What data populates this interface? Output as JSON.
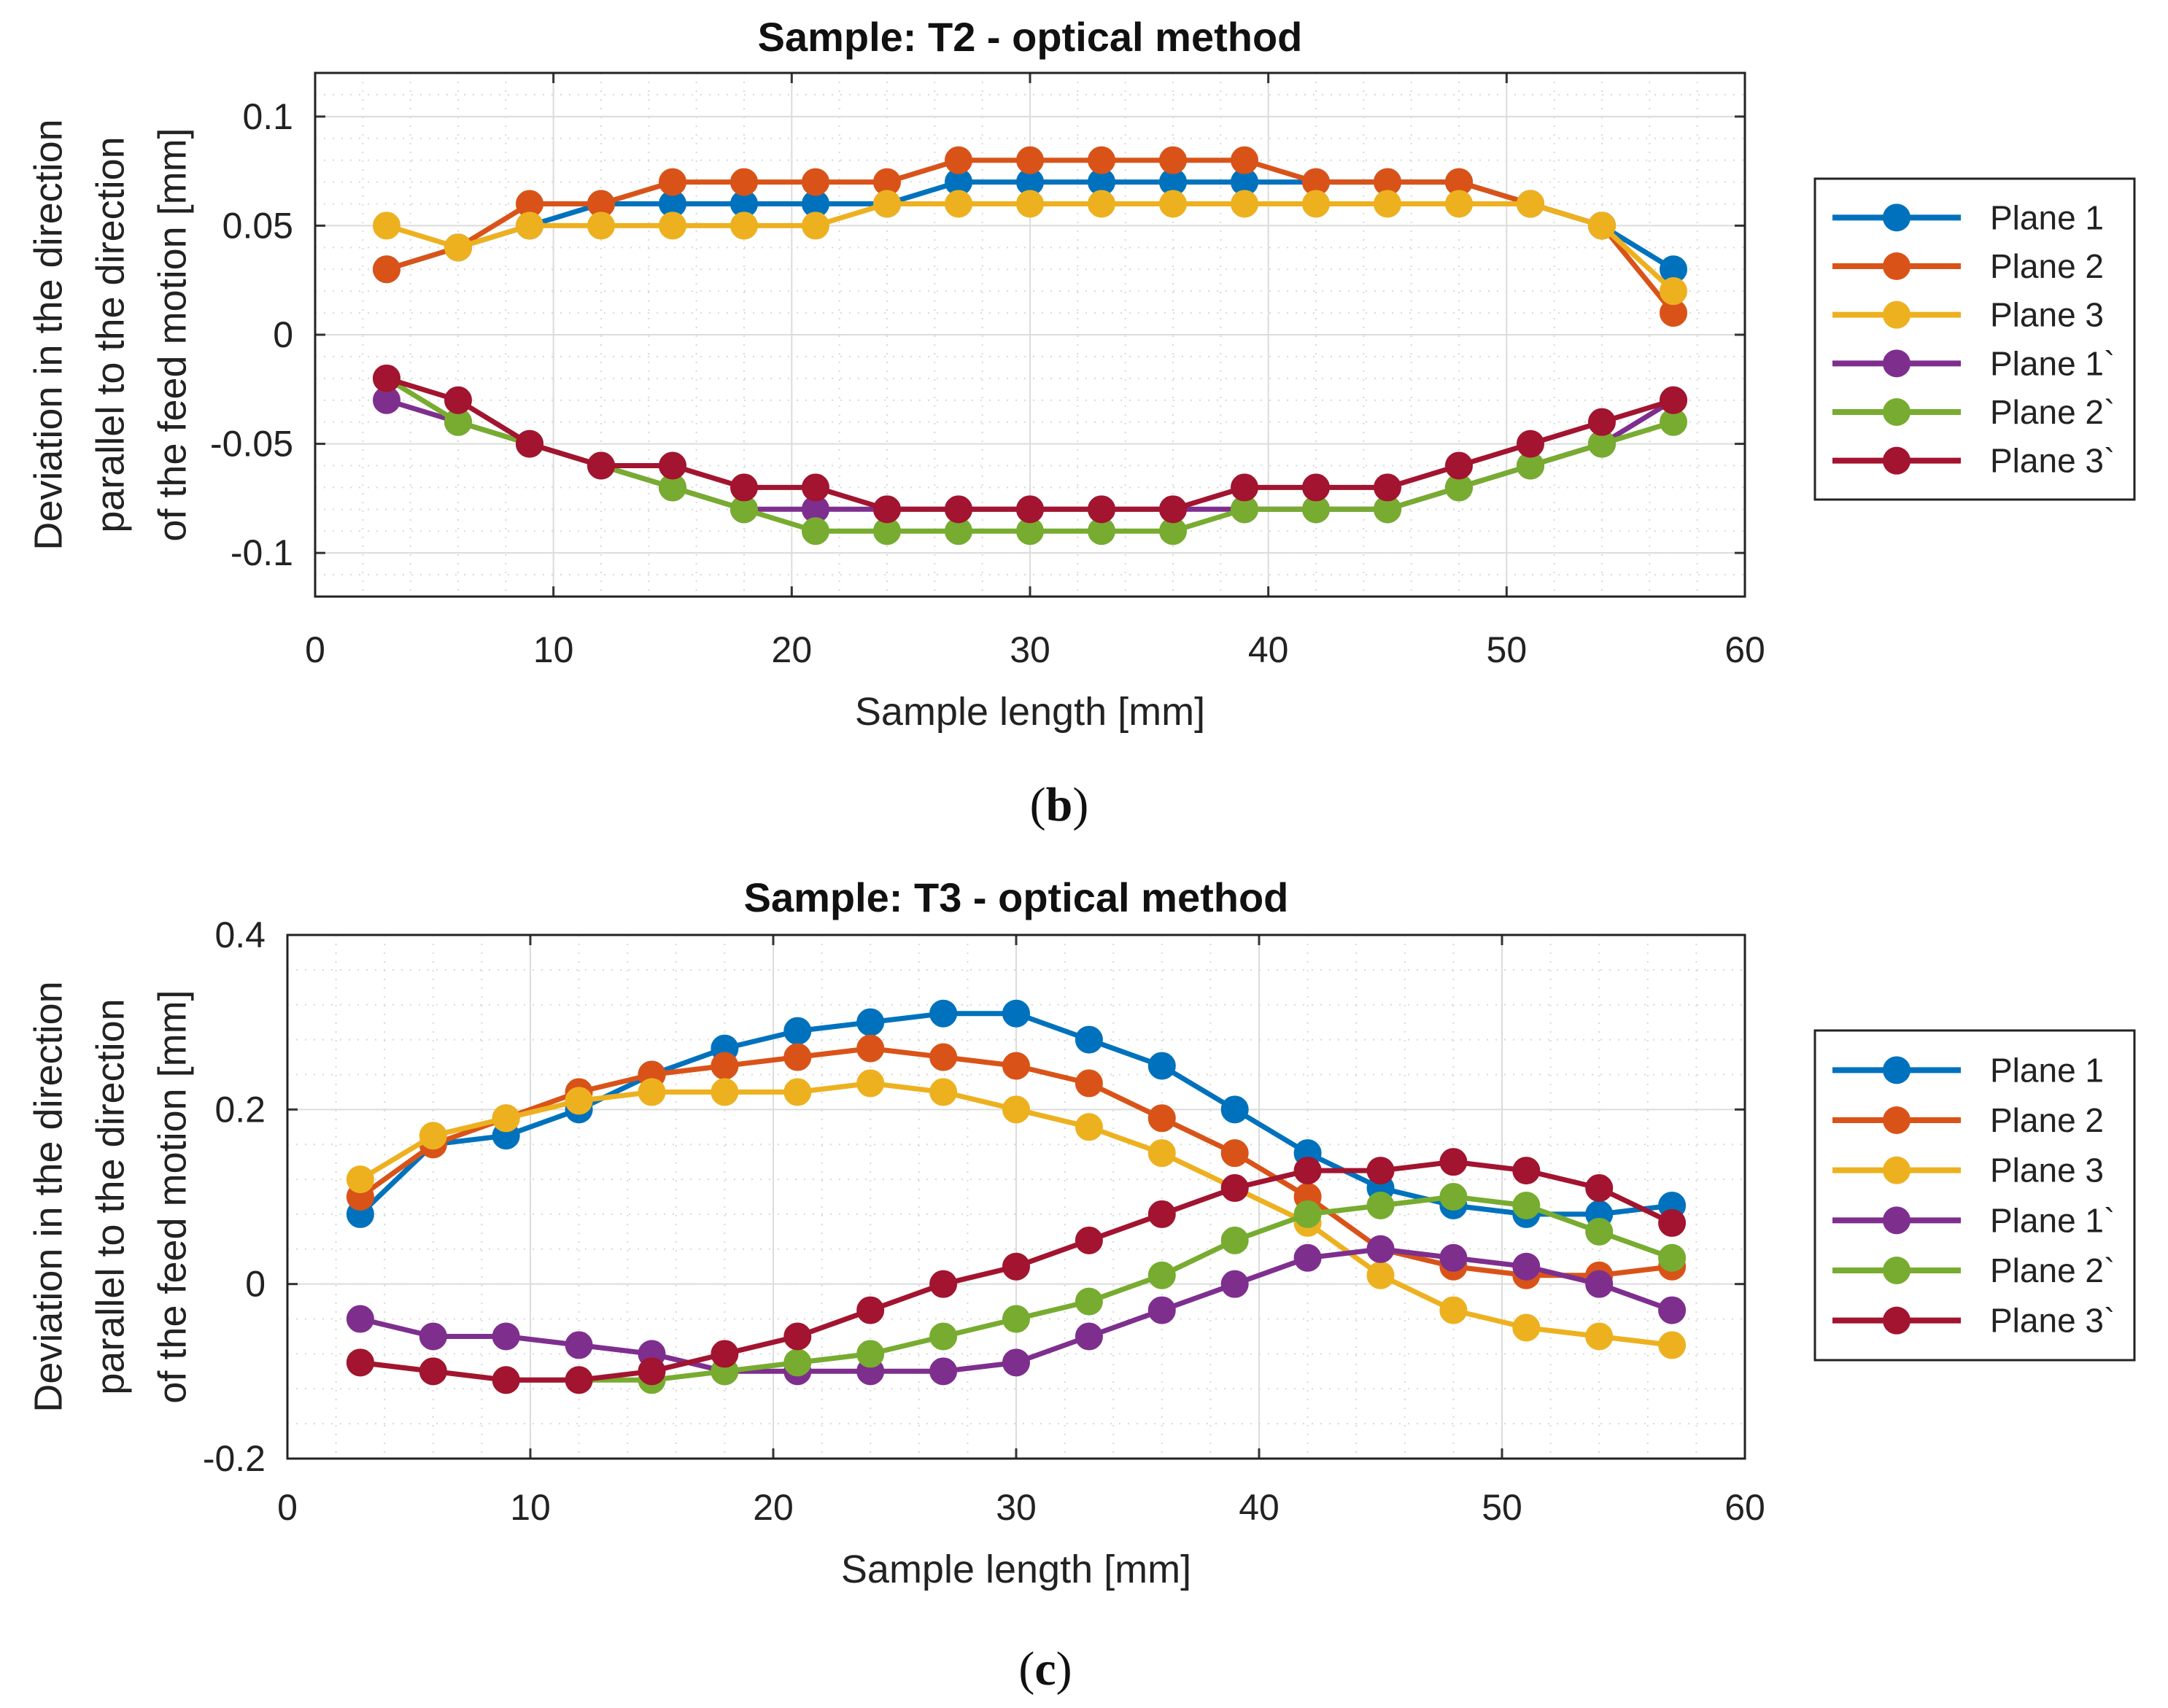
{
  "colors": {
    "plane1": "#0072BD",
    "plane2": "#D95319",
    "plane3": "#EDB120",
    "plane1p": "#7E2F8E",
    "plane2p": "#77AC30",
    "plane3p": "#A2142F"
  },
  "chart_data": [
    {
      "type": "line",
      "title": "Sample: T2 - optical method",
      "xlabel": "Sample length [mm]",
      "ylabel": [
        "Deviation in the direction",
        "parallel to the direction",
        "of the feed motion [mm]"
      ],
      "xlim": [
        0,
        60
      ],
      "ylim": [
        -0.12,
        0.12
      ],
      "xticks": [
        0,
        10,
        20,
        30,
        40,
        50,
        60
      ],
      "yticks": [
        -0.1,
        -0.05,
        0,
        0.05,
        0.1
      ],
      "ytick_labels": [
        "-0.1",
        "-0.05",
        "0",
        "0.05",
        "0.1"
      ],
      "grid": true,
      "minor_grid": true,
      "legend_position": "right",
      "caption": "b",
      "x": [
        3,
        6,
        9,
        12,
        15,
        18,
        21,
        24,
        27,
        30,
        33,
        36,
        39,
        42,
        45,
        48,
        51,
        54,
        57
      ],
      "series": [
        {
          "name": "Plane 1",
          "color_key": "plane1",
          "values": [
            0.03,
            0.04,
            0.05,
            0.06,
            0.06,
            0.06,
            0.06,
            0.06,
            0.07,
            0.07,
            0.07,
            0.07,
            0.07,
            0.07,
            0.07,
            0.07,
            0.06,
            0.05,
            0.03
          ]
        },
        {
          "name": "Plane 2",
          "color_key": "plane2",
          "values": [
            0.03,
            0.04,
            0.06,
            0.06,
            0.07,
            0.07,
            0.07,
            0.07,
            0.08,
            0.08,
            0.08,
            0.08,
            0.08,
            0.07,
            0.07,
            0.07,
            0.06,
            0.05,
            0.01
          ]
        },
        {
          "name": "Plane 3",
          "color_key": "plane3",
          "values": [
            0.05,
            0.04,
            0.05,
            0.05,
            0.05,
            0.05,
            0.05,
            0.06,
            0.06,
            0.06,
            0.06,
            0.06,
            0.06,
            0.06,
            0.06,
            0.06,
            0.06,
            0.05,
            0.02
          ]
        },
        {
          "name": "Plane 1`",
          "color_key": "plane1p",
          "values": [
            -0.03,
            -0.04,
            -0.05,
            -0.06,
            -0.07,
            -0.08,
            -0.08,
            -0.08,
            -0.08,
            -0.08,
            -0.08,
            -0.08,
            -0.08,
            -0.08,
            -0.08,
            -0.07,
            -0.06,
            -0.05,
            -0.03
          ]
        },
        {
          "name": "Plane 2`",
          "color_key": "plane2p",
          "values": [
            -0.02,
            -0.04,
            -0.05,
            -0.06,
            -0.07,
            -0.08,
            -0.09,
            -0.09,
            -0.09,
            -0.09,
            -0.09,
            -0.09,
            -0.08,
            -0.08,
            -0.08,
            -0.07,
            -0.06,
            -0.05,
            -0.04
          ]
        },
        {
          "name": "Plane 3`",
          "color_key": "plane3p",
          "values": [
            -0.02,
            -0.03,
            -0.05,
            -0.06,
            -0.06,
            -0.07,
            -0.07,
            -0.08,
            -0.08,
            -0.08,
            -0.08,
            -0.08,
            -0.07,
            -0.07,
            -0.07,
            -0.06,
            -0.05,
            -0.04,
            -0.03
          ]
        }
      ]
    },
    {
      "type": "line",
      "title": "Sample: T3 - optical method",
      "xlabel": "Sample length [mm]",
      "ylabel": [
        "Deviation in the direction",
        "parallel to the direction",
        "of the feed motion [mm]"
      ],
      "xlim": [
        0,
        60
      ],
      "ylim": [
        -0.2,
        0.4
      ],
      "xticks": [
        0,
        10,
        20,
        30,
        40,
        50,
        60
      ],
      "yticks": [
        -0.2,
        0,
        0.2,
        0.4
      ],
      "ytick_labels": [
        "-0.2",
        "0",
        "0.2",
        "0.4"
      ],
      "grid": true,
      "minor_grid": true,
      "legend_position": "right",
      "caption": "c",
      "x": [
        3,
        6,
        9,
        12,
        15,
        18,
        21,
        24,
        27,
        30,
        33,
        36,
        39,
        42,
        45,
        48,
        51,
        54,
        57
      ],
      "series": [
        {
          "name": "Plane 1",
          "color_key": "plane1",
          "values": [
            0.08,
            0.16,
            0.17,
            0.2,
            0.24,
            0.27,
            0.29,
            0.3,
            0.31,
            0.31,
            0.28,
            0.25,
            0.2,
            0.15,
            0.11,
            0.09,
            0.08,
            0.08,
            0.09
          ]
        },
        {
          "name": "Plane 2",
          "color_key": "plane2",
          "values": [
            0.1,
            0.16,
            0.19,
            0.22,
            0.24,
            0.25,
            0.26,
            0.27,
            0.26,
            0.25,
            0.23,
            0.19,
            0.15,
            0.1,
            0.04,
            0.02,
            0.01,
            0.01,
            0.02
          ]
        },
        {
          "name": "Plane 3",
          "color_key": "plane3",
          "values": [
            0.12,
            0.17,
            0.19,
            0.21,
            0.22,
            0.22,
            0.22,
            0.23,
            0.22,
            0.2,
            0.18,
            0.15,
            0.11,
            0.07,
            0.01,
            -0.03,
            -0.05,
            -0.06,
            -0.07
          ]
        },
        {
          "name": "Plane 1`",
          "color_key": "plane1p",
          "values": [
            -0.04,
            -0.06,
            -0.06,
            -0.07,
            -0.08,
            -0.1,
            -0.1,
            -0.1,
            -0.1,
            -0.09,
            -0.06,
            -0.03,
            0.0,
            0.03,
            0.04,
            0.03,
            0.02,
            0.0,
            -0.03
          ]
        },
        {
          "name": "Plane 2`",
          "color_key": "plane2p",
          "values": [
            -0.09,
            -0.1,
            -0.11,
            -0.11,
            -0.11,
            -0.1,
            -0.09,
            -0.08,
            -0.06,
            -0.04,
            -0.02,
            0.01,
            0.05,
            0.08,
            0.09,
            0.1,
            0.09,
            0.06,
            0.03
          ]
        },
        {
          "name": "Plane 3`",
          "color_key": "plane3p",
          "values": [
            -0.09,
            -0.1,
            -0.11,
            -0.11,
            -0.1,
            -0.08,
            -0.06,
            -0.03,
            0.0,
            0.02,
            0.05,
            0.08,
            0.11,
            0.13,
            0.13,
            0.14,
            0.13,
            0.11,
            0.07
          ]
        }
      ]
    }
  ]
}
